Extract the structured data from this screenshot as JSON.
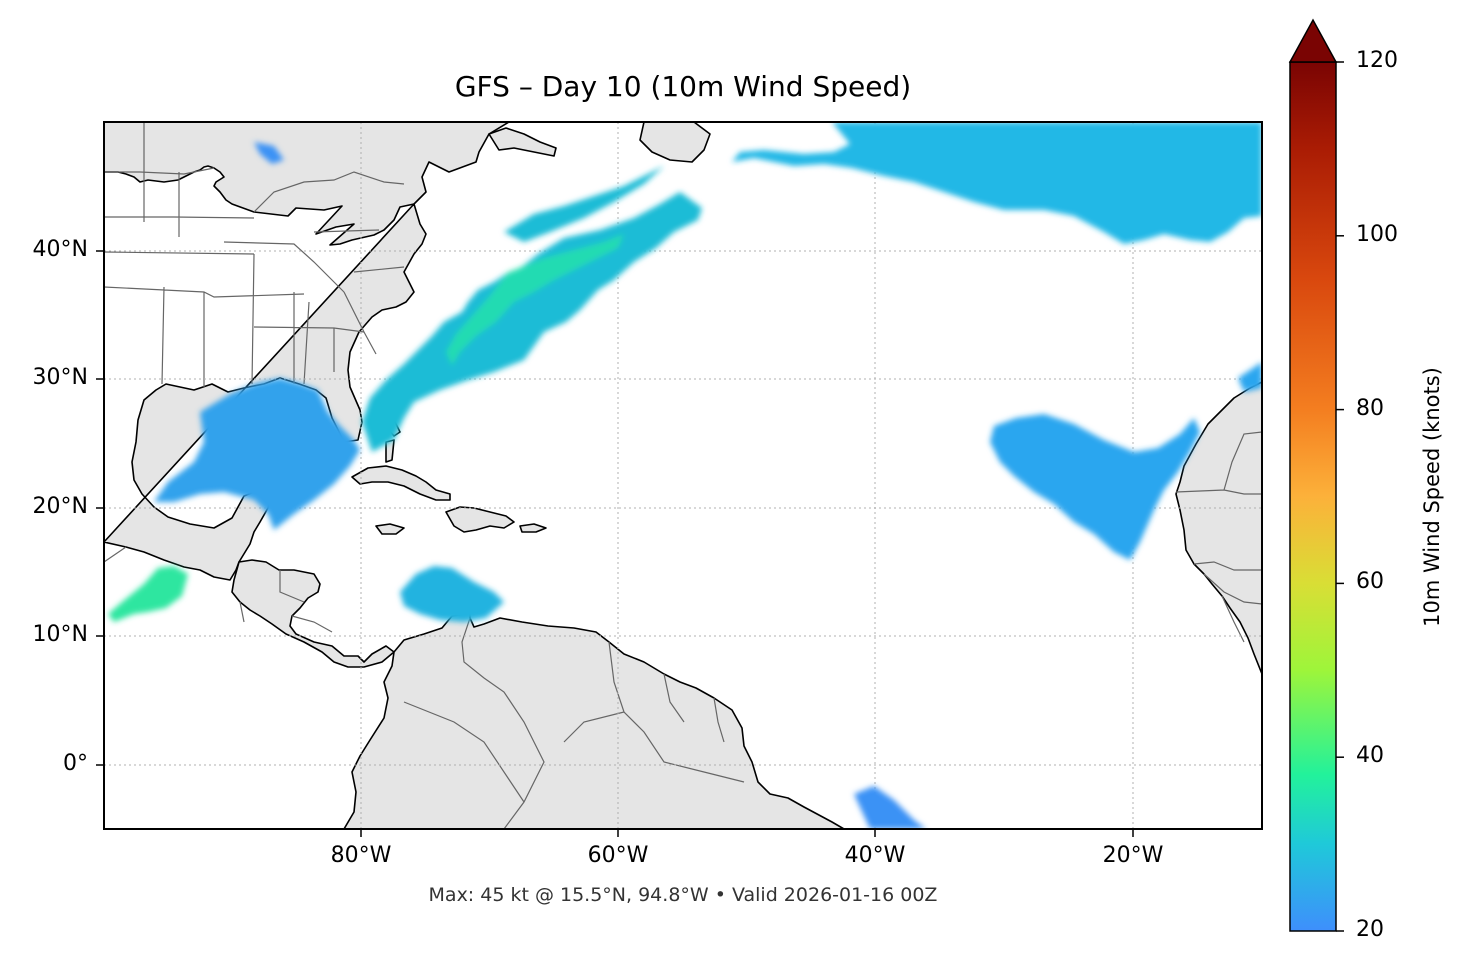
{
  "title": "GFS – Day 10 (10m Wind Speed)",
  "footer": "Max: 45 kt @ 15.5°N, 94.8°W • Valid 2026-01-16 00Z",
  "map": {
    "lon_range": [
      -100,
      -10
    ],
    "lat_range": [
      -5,
      50
    ],
    "lat_ticks": [
      {
        "value": 40,
        "label": "40°N"
      },
      {
        "value": 30,
        "label": "30°N"
      },
      {
        "value": 20,
        "label": "20°N"
      },
      {
        "value": 10,
        "label": "10°N"
      },
      {
        "value": 0,
        "label": "0°"
      }
    ],
    "lon_ticks": [
      {
        "value": -80,
        "label": "80°W"
      },
      {
        "value": -60,
        "label": "60°W"
      },
      {
        "value": -40,
        "label": "40°W"
      },
      {
        "value": -20,
        "label": "20°W"
      }
    ],
    "land_color": "#e5e5e5",
    "coast_color": "#000000",
    "border_color": "#666666",
    "gridlines": "dotted"
  },
  "colorbar": {
    "label": "10m Wind Speed (knots)",
    "min": 20,
    "max": 120,
    "extend": "max",
    "ticks": [
      {
        "value": 20,
        "label": "20"
      },
      {
        "value": 40,
        "label": "40"
      },
      {
        "value": 60,
        "label": "60"
      },
      {
        "value": 80,
        "label": "80"
      },
      {
        "value": 100,
        "label": "100"
      },
      {
        "value": 120,
        "label": "120"
      }
    ],
    "stops": [
      {
        "value": 20,
        "color": "#3e8ffc"
      },
      {
        "value": 30,
        "color": "#1fc9d9"
      },
      {
        "value": 38,
        "color": "#22f29b"
      },
      {
        "value": 50,
        "color": "#9ef53a"
      },
      {
        "value": 60,
        "color": "#d9de35"
      },
      {
        "value": 70,
        "color": "#fcb13a"
      },
      {
        "value": 80,
        "color": "#f47e20"
      },
      {
        "value": 95,
        "color": "#d9480e"
      },
      {
        "value": 110,
        "color": "#aa1c04"
      },
      {
        "value": 120,
        "color": "#7a0403"
      }
    ]
  }
}
